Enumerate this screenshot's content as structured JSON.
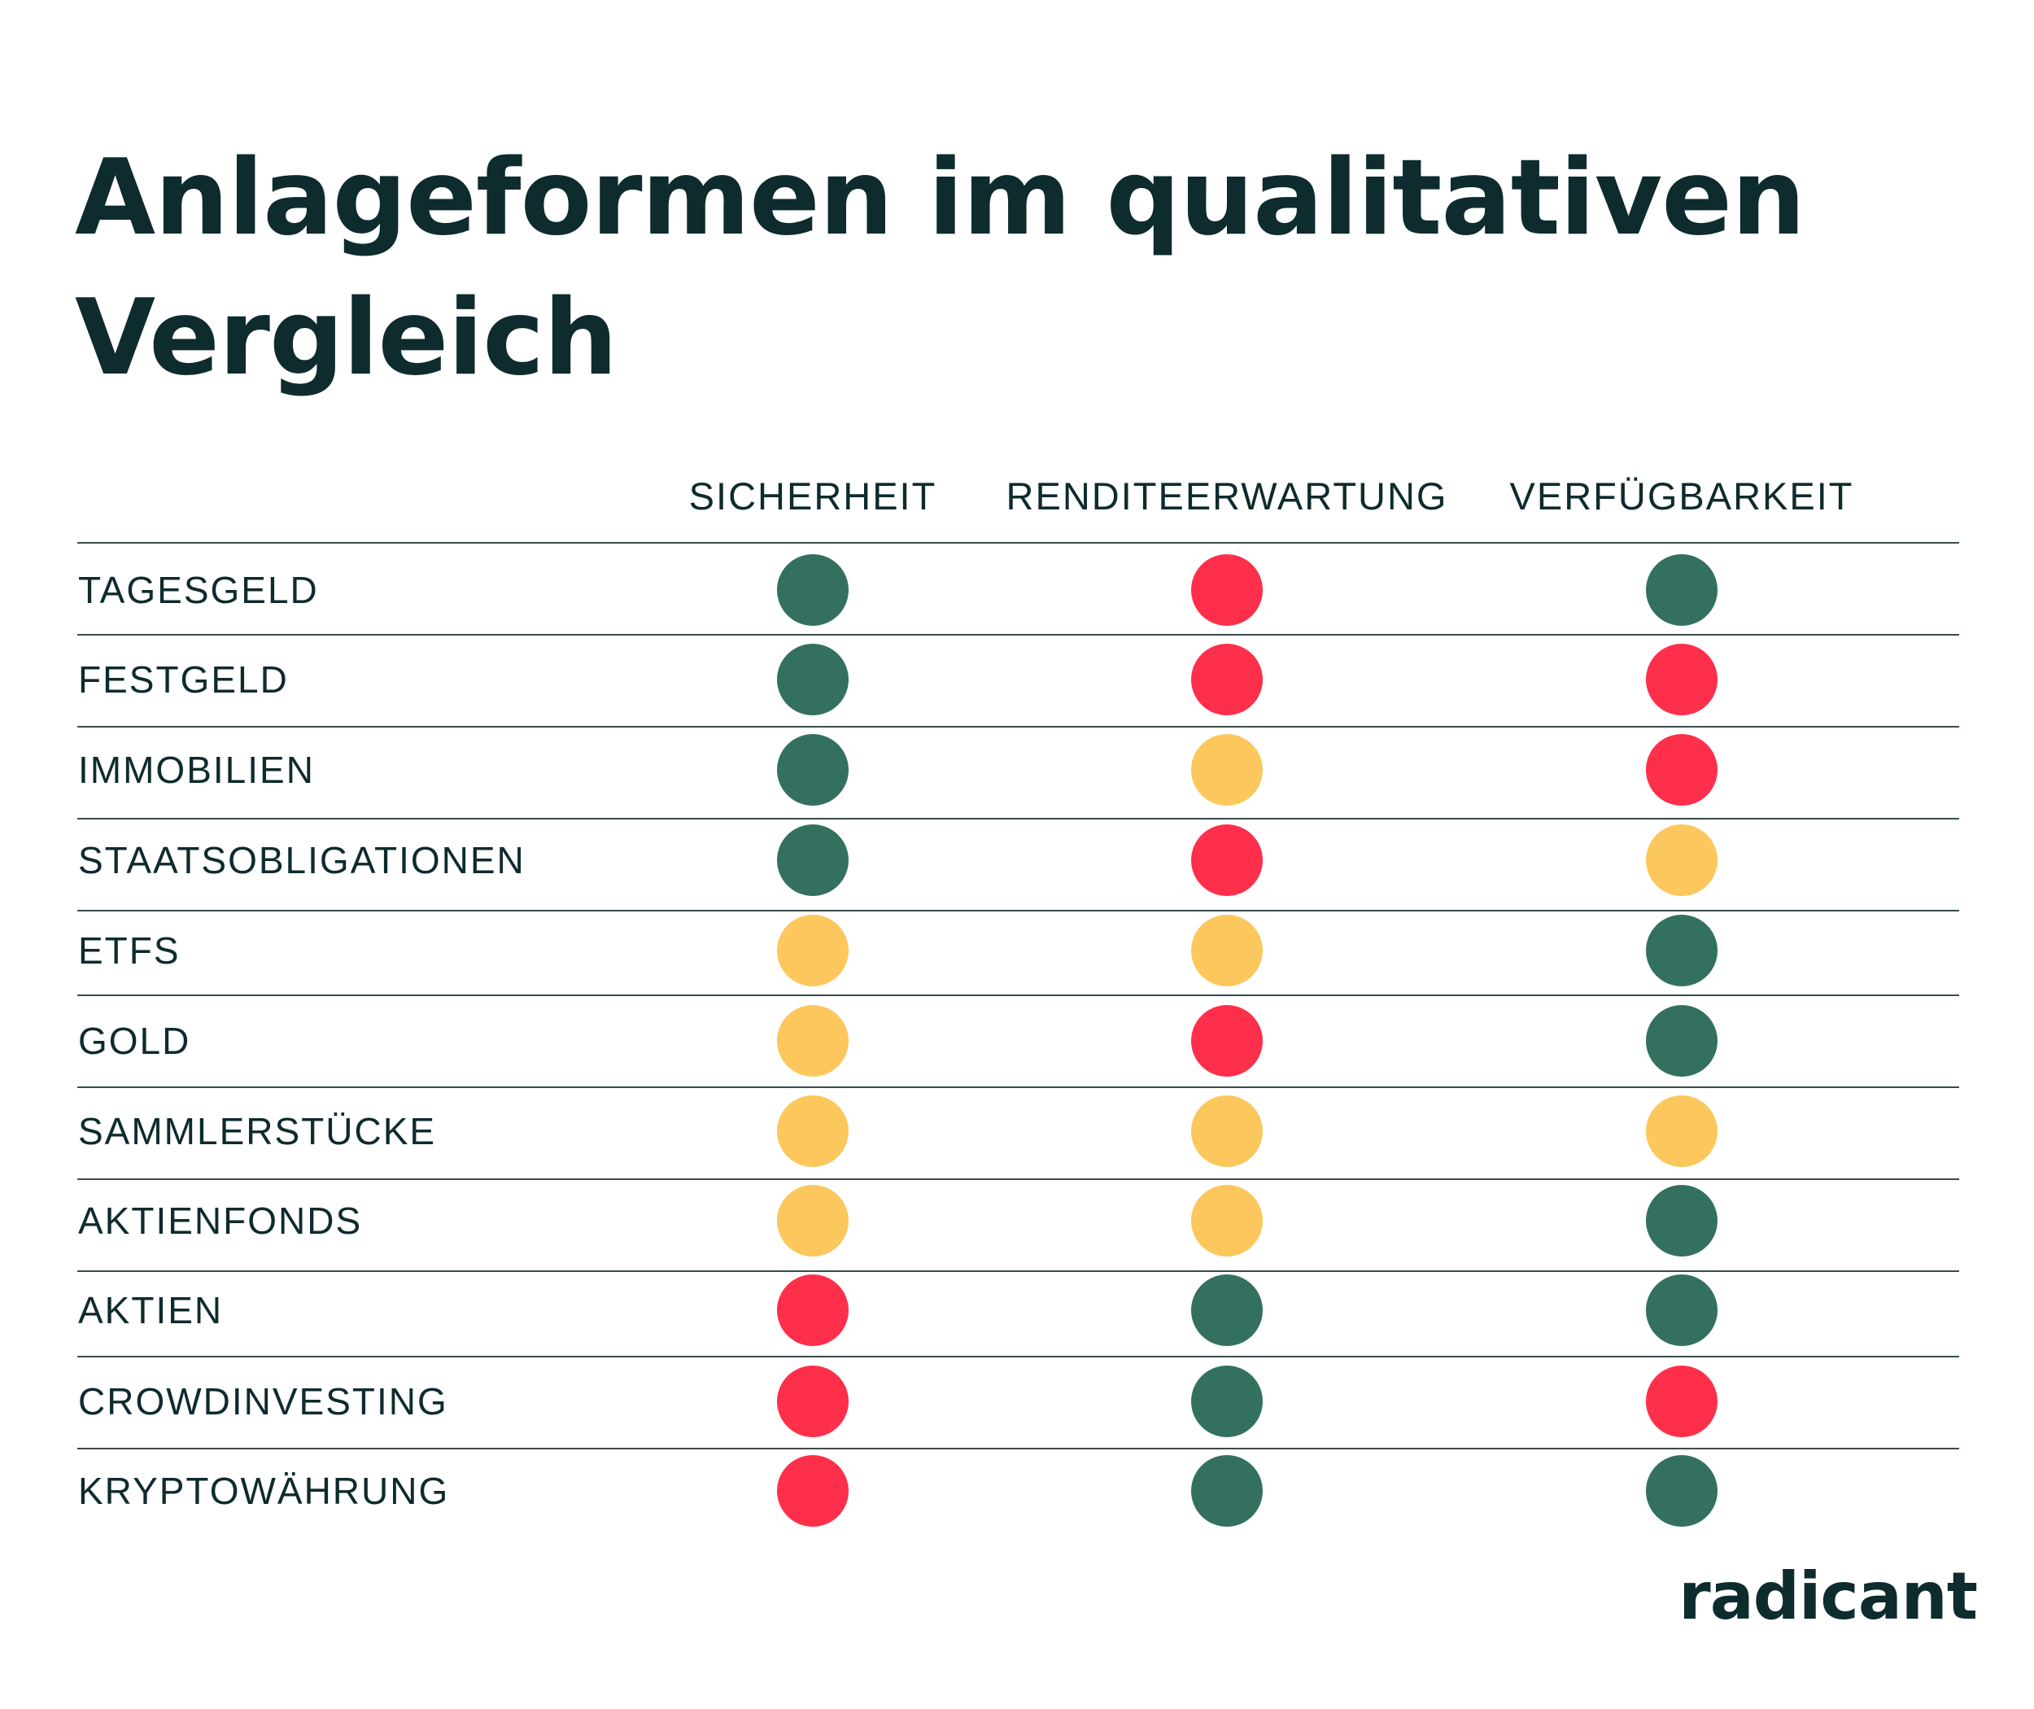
{
  "title": "Anlageformen im qualitativen Vergleich",
  "logo": "radicant",
  "colors": {
    "good": "#33705f",
    "medium": "#fcc75c",
    "bad": "#fe2f4a",
    "text": "#0e2b2e"
  },
  "chart_data": {
    "type": "table",
    "title": "Anlageformen im qualitativen Vergleich",
    "columns": [
      "SICHERHEIT",
      "RENDITEERWARTUNG",
      "VERFÜGBARKEIT"
    ],
    "rows": [
      {
        "label": "TAGESGELD",
        "ratings": [
          "green",
          "red",
          "green"
        ]
      },
      {
        "label": "FESTGELD",
        "ratings": [
          "green",
          "red",
          "red"
        ]
      },
      {
        "label": "IMMOBILIEN",
        "ratings": [
          "green",
          "yellow",
          "red"
        ]
      },
      {
        "label": "STAATSOBLIGATIONEN",
        "ratings": [
          "green",
          "red",
          "yellow"
        ]
      },
      {
        "label": "ETFS",
        "ratings": [
          "yellow",
          "yellow",
          "green"
        ]
      },
      {
        "label": "GOLD",
        "ratings": [
          "yellow",
          "red",
          "green"
        ]
      },
      {
        "label": "SAMMLERSTÜCKE",
        "ratings": [
          "yellow",
          "yellow",
          "yellow"
        ]
      },
      {
        "label": "AKTIENFONDS",
        "ratings": [
          "yellow",
          "yellow",
          "green"
        ]
      },
      {
        "label": "AKTIEN",
        "ratings": [
          "red",
          "green",
          "green"
        ]
      },
      {
        "label": "CROWDINVESTING",
        "ratings": [
          "red",
          "green",
          "red"
        ]
      },
      {
        "label": "KRYPTOWÄHRUNG",
        "ratings": [
          "red",
          "green",
          "green"
        ]
      }
    ]
  }
}
